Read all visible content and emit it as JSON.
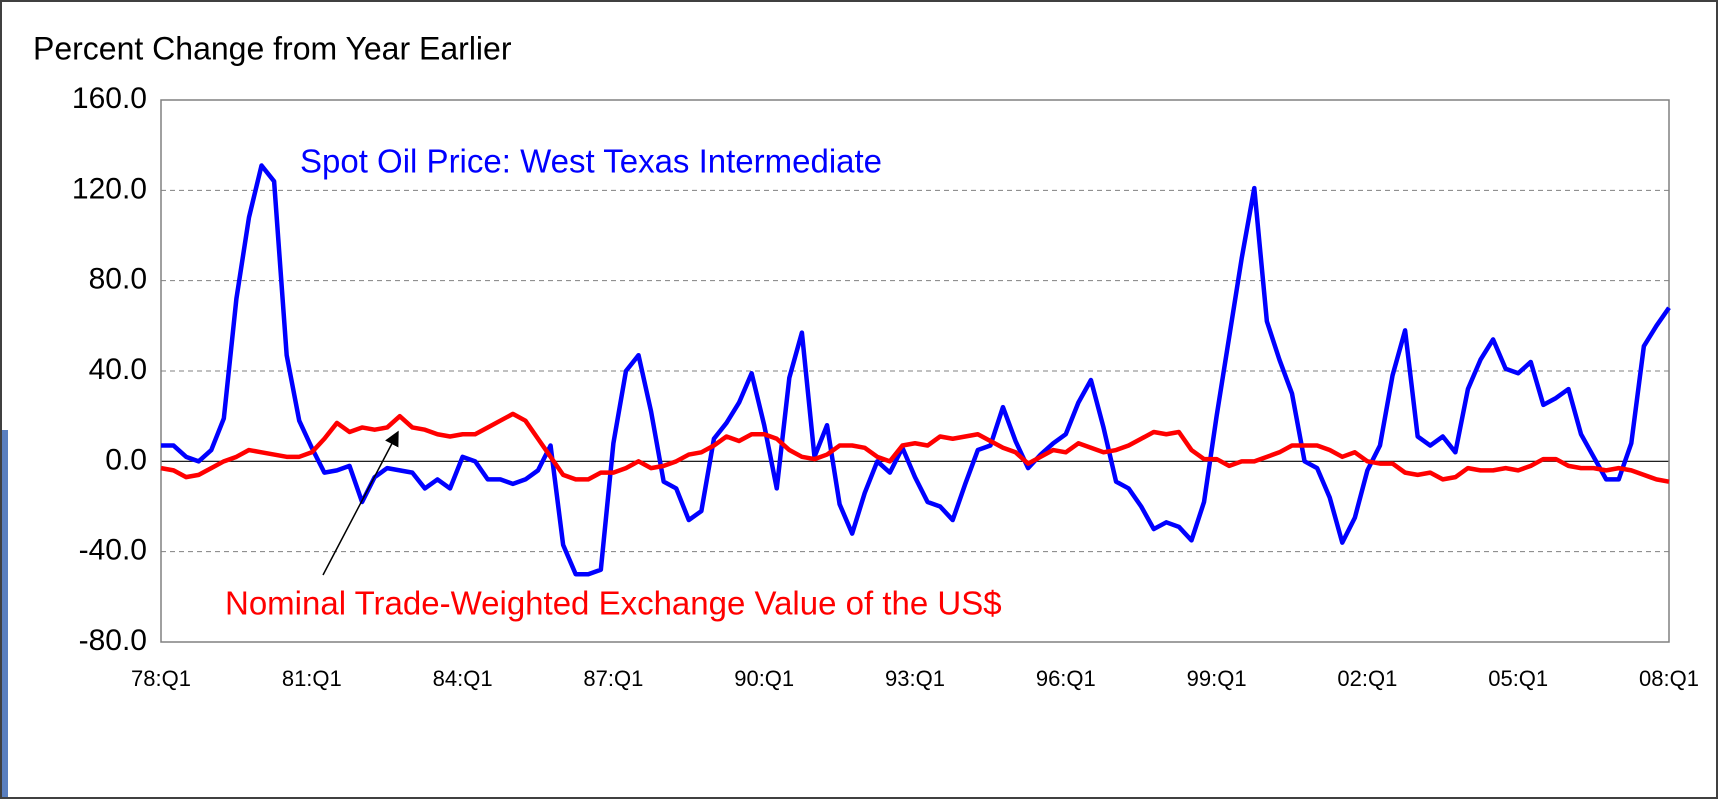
{
  "chart_data": {
    "type": "line",
    "y_axis_title": "Percent Change from Year Earlier",
    "categories": [
      "78:Q1",
      null,
      null,
      null,
      null,
      null,
      null,
      null,
      null,
      null,
      null,
      null,
      "81:Q1",
      null,
      null,
      null,
      null,
      null,
      null,
      null,
      null,
      null,
      null,
      null,
      "84:Q1",
      null,
      null,
      null,
      null,
      null,
      null,
      null,
      null,
      null,
      null,
      null,
      "87:Q1",
      null,
      null,
      null,
      null,
      null,
      null,
      null,
      null,
      null,
      null,
      null,
      "90:Q1",
      null,
      null,
      null,
      null,
      null,
      null,
      null,
      null,
      null,
      null,
      null,
      "93:Q1",
      null,
      null,
      null,
      null,
      null,
      null,
      null,
      null,
      null,
      null,
      null,
      "96:Q1",
      null,
      null,
      null,
      null,
      null,
      null,
      null,
      null,
      null,
      null,
      null,
      "99:Q1",
      null,
      null,
      null,
      null,
      null,
      null,
      null,
      null,
      null,
      null,
      null,
      "02:Q1",
      null,
      null,
      null,
      null,
      null,
      null,
      null,
      null,
      null,
      null,
      null,
      "05:Q1",
      null,
      null,
      null,
      null,
      null,
      null,
      null,
      null,
      null,
      null,
      null,
      "08:Q1"
    ],
    "series": [
      {
        "name": "Spot Oil Price: West Texas Intermediate",
        "color": "#0000ff",
        "values": [
          7,
          7,
          2,
          0,
          5,
          19,
          72,
          108,
          131,
          124,
          47,
          18,
          6,
          -5,
          -4,
          -2,
          -18,
          -7,
          -3,
          -4,
          -5,
          -12,
          -8,
          -12,
          2,
          0,
          -8,
          -8,
          -10,
          -8,
          -4,
          7,
          -37,
          -50,
          -50,
          -48,
          8,
          40,
          47,
          22,
          -9,
          -12,
          -26,
          -22,
          10,
          17,
          26,
          39,
          16,
          -12,
          37,
          57,
          2,
          16,
          -19,
          -32,
          -14,
          0,
          -5,
          6,
          -7,
          -18,
          -20,
          -26,
          -10,
          5,
          7,
          24,
          9,
          -3,
          3,
          8,
          12,
          26,
          36,
          15,
          -9,
          -12,
          -20,
          -30,
          -27,
          -29,
          -35,
          -18,
          20,
          55,
          90,
          121,
          62,
          45,
          30,
          0,
          -3,
          -16,
          -36,
          -25,
          -4,
          7,
          38,
          58,
          11,
          7,
          11,
          4,
          32,
          45,
          54,
          41,
          39,
          44,
          25,
          28,
          32,
          12,
          2,
          -8,
          -8,
          8,
          51,
          60,
          68
        ]
      },
      {
        "name": "Nominal Trade-Weighted Exchange Value of the US$",
        "color": "#ff0000",
        "values": [
          -3,
          -4,
          -7,
          -6,
          -3,
          0,
          2,
          5,
          4,
          3,
          2,
          2,
          4,
          10,
          17,
          13,
          15,
          14,
          15,
          20,
          15,
          14,
          12,
          11,
          12,
          12,
          15,
          18,
          21,
          18,
          10,
          2,
          -6,
          -8,
          -8,
          -5,
          -5,
          -3,
          0,
          -3,
          -2,
          0,
          3,
          4,
          7,
          11,
          9,
          12,
          12,
          10,
          5,
          2,
          1,
          3,
          7,
          7,
          6,
          2,
          0,
          7,
          8,
          7,
          11,
          10,
          11,
          12,
          9,
          6,
          4,
          -1,
          2,
          5,
          4,
          8,
          6,
          4,
          5,
          7,
          10,
          13,
          12,
          13,
          5,
          1,
          1,
          -2,
          0,
          0,
          2,
          4,
          7,
          7,
          7,
          5,
          2,
          4,
          0,
          -1,
          -1,
          -5,
          -6,
          -5,
          -8,
          -7,
          -3,
          -4,
          -4,
          -3,
          -4,
          -2,
          1,
          1,
          -2,
          -3,
          -3,
          -4,
          -3,
          -4,
          -6,
          -8,
          -9
        ]
      }
    ],
    "ylim": [
      -80,
      160
    ],
    "yticks": [
      {
        "value": -80,
        "label": "-80.0"
      },
      {
        "value": -40,
        "label": "-40.0"
      },
      {
        "value": 0,
        "label": "0.0"
      },
      {
        "value": 40,
        "label": "40.0"
      },
      {
        "value": 80,
        "label": "80.0"
      },
      {
        "value": 120,
        "label": "120.0"
      },
      {
        "value": 160,
        "label": "160.0"
      }
    ],
    "grid": true
  }
}
